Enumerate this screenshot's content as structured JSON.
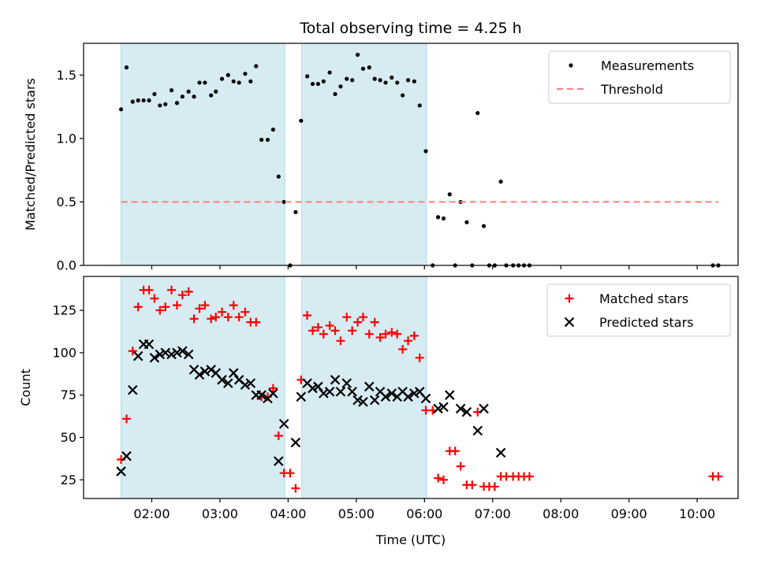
{
  "chart_data": {
    "type": "scatter",
    "title": "Total observing time = 4.25 h",
    "xlabel": "Time (UTC)",
    "x_unit": "hours UTC",
    "xlim": [
      1.0,
      10.6
    ],
    "xticks": [
      2,
      3,
      4,
      5,
      6,
      7,
      8,
      9,
      10
    ],
    "xtick_labels": [
      "02:00",
      "03:00",
      "04:00",
      "05:00",
      "06:00",
      "07:00",
      "08:00",
      "09:00",
      "10:00"
    ],
    "observing_windows": [
      [
        1.55,
        3.95
      ],
      [
        4.2,
        6.03
      ]
    ],
    "window_color": "#add8e6",
    "panels": [
      {
        "ylabel": "Matched/Predicted stars",
        "ylim": [
          0,
          1.75
        ],
        "yticks": [
          0,
          0.5,
          1.0,
          1.5
        ],
        "ytick_labels": [
          "0.0",
          "0.5",
          "1.0",
          "1.5"
        ],
        "legend_position": "upper right",
        "series": [
          {
            "name": "Measurements",
            "marker": "dot",
            "color": "#000000",
            "x": [
              1.55,
              1.63,
              1.72,
              1.8,
              1.88,
              1.96,
              2.04,
              2.12,
              2.2,
              2.29,
              2.37,
              2.45,
              2.54,
              2.62,
              2.7,
              2.78,
              2.87,
              2.94,
              3.03,
              3.12,
              3.2,
              3.28,
              3.37,
              3.45,
              3.53,
              3.61,
              3.7,
              3.78,
              3.86,
              3.94,
              4.03,
              4.11,
              4.19,
              4.28,
              4.36,
              4.44,
              4.52,
              4.61,
              4.69,
              4.77,
              4.86,
              4.94,
              5.02,
              5.1,
              5.19,
              5.27,
              5.35,
              5.43,
              5.52,
              5.6,
              5.68,
              5.76,
              5.85,
              5.93,
              6.02,
              6.12,
              6.2,
              6.28,
              6.37,
              6.45,
              6.53,
              6.62,
              6.7,
              6.78,
              6.87,
              6.95,
              7.03,
              7.12,
              7.2,
              7.3,
              7.38,
              7.46,
              7.54,
              10.23,
              10.31
            ],
            "y": [
              1.23,
              1.56,
              1.29,
              1.3,
              1.3,
              1.3,
              1.35,
              1.26,
              1.27,
              1.38,
              1.28,
              1.33,
              1.37,
              1.33,
              1.44,
              1.44,
              1.34,
              1.37,
              1.47,
              1.5,
              1.45,
              1.44,
              1.51,
              1.45,
              1.57,
              0.99,
              0.99,
              1.07,
              0.7,
              0.5,
              0.0,
              0.42,
              1.14,
              1.49,
              1.43,
              1.43,
              1.45,
              1.52,
              1.35,
              1.41,
              1.47,
              1.46,
              1.66,
              1.55,
              1.56,
              1.47,
              1.46,
              1.44,
              1.48,
              1.44,
              1.34,
              1.46,
              1.45,
              1.26,
              0.9,
              0.0,
              0.38,
              0.37,
              0.56,
              0.0,
              0.5,
              0.34,
              0.0,
              1.2,
              0.31,
              0.0,
              0.0,
              0.66,
              0.0,
              0.0,
              0.0,
              0.0,
              0.0,
              0.0,
              0.0
            ]
          },
          {
            "name": "Threshold",
            "marker": "dashed-line",
            "color": "#ff7f7f",
            "x": [
              1.55,
              10.31
            ],
            "y": [
              0.5,
              0.5
            ]
          }
        ]
      },
      {
        "ylabel": "Count",
        "ylim": [
          14,
          145
        ],
        "yticks": [
          25,
          50,
          75,
          100,
          125
        ],
        "ytick_labels": [
          "25",
          "50",
          "75",
          "100",
          "125"
        ],
        "legend_position": "upper right",
        "series": [
          {
            "name": "Matched stars",
            "marker": "plus",
            "color": "#ff0000",
            "x": [
              1.55,
              1.63,
              1.72,
              1.8,
              1.88,
              1.96,
              2.04,
              2.12,
              2.2,
              2.29,
              2.37,
              2.45,
              2.54,
              2.62,
              2.7,
              2.78,
              2.87,
              2.94,
              3.03,
              3.12,
              3.2,
              3.28,
              3.37,
              3.45,
              3.53,
              3.61,
              3.7,
              3.78,
              3.86,
              3.94,
              4.03,
              4.11,
              4.19,
              4.28,
              4.36,
              4.44,
              4.52,
              4.61,
              4.69,
              4.77,
              4.86,
              4.94,
              5.02,
              5.1,
              5.19,
              5.27,
              5.35,
              5.43,
              5.52,
              5.6,
              5.68,
              5.76,
              5.85,
              5.93,
              6.02,
              6.12,
              6.2,
              6.28,
              6.37,
              6.45,
              6.53,
              6.62,
              6.7,
              6.78,
              6.87,
              6.95,
              7.03,
              7.12,
              7.2,
              7.3,
              7.38,
              7.46,
              7.54,
              10.23,
              10.31
            ],
            "y": [
              37,
              61,
              101,
              127,
              137,
              137,
              132,
              125,
              127,
              137,
              128,
              134,
              136,
              120,
              126,
              128,
              120,
              121,
              124,
              121,
              128,
              121,
              124,
              118,
              118,
              74,
              74,
              79,
              51,
              29,
              29,
              20,
              84,
              122,
              113,
              115,
              111,
              116,
              113,
              107,
              121,
              113,
              118,
              121,
              111,
              118,
              109,
              111,
              112,
              111,
              102,
              107,
              110,
              97,
              66,
              66,
              26,
              25,
              42,
              42,
              33,
              22,
              22,
              65,
              21,
              21,
              21,
              27,
              27,
              27,
              27,
              27,
              27,
              27,
              27
            ]
          },
          {
            "name": "Predicted stars",
            "marker": "x",
            "color": "#000000",
            "x": [
              1.55,
              1.63,
              1.72,
              1.8,
              1.88,
              1.96,
              2.04,
              2.12,
              2.2,
              2.29,
              2.37,
              2.45,
              2.54,
              2.62,
              2.7,
              2.78,
              2.87,
              2.94,
              3.03,
              3.12,
              3.2,
              3.28,
              3.37,
              3.45,
              3.53,
              3.61,
              3.7,
              3.78,
              3.86,
              3.94,
              4.11,
              4.19,
              4.28,
              4.36,
              4.44,
              4.52,
              4.61,
              4.69,
              4.77,
              4.86,
              4.94,
              5.02,
              5.1,
              5.19,
              5.27,
              5.35,
              5.43,
              5.52,
              5.6,
              5.68,
              5.76,
              5.85,
              5.93,
              6.02,
              6.2,
              6.28,
              6.37,
              6.53,
              6.62,
              6.78,
              6.87,
              7.12
            ],
            "y": [
              30,
              39,
              78,
              98,
              105,
              105,
              97,
              99,
              100,
              99,
              100,
              101,
              99,
              90,
              87,
              89,
              90,
              88,
              84,
              82,
              88,
              84,
              81,
              82,
              75,
              75,
              73,
              76,
              36,
              58,
              47,
              74,
              82,
              79,
              80,
              76,
              77,
              84,
              77,
              82,
              77,
              72,
              71,
              80,
              72,
              77,
              74,
              76,
              74,
              77,
              74,
              76,
              77,
              73,
              67,
              68,
              75,
              67,
              65,
              54,
              67,
              41
            ]
          }
        ]
      }
    ]
  }
}
